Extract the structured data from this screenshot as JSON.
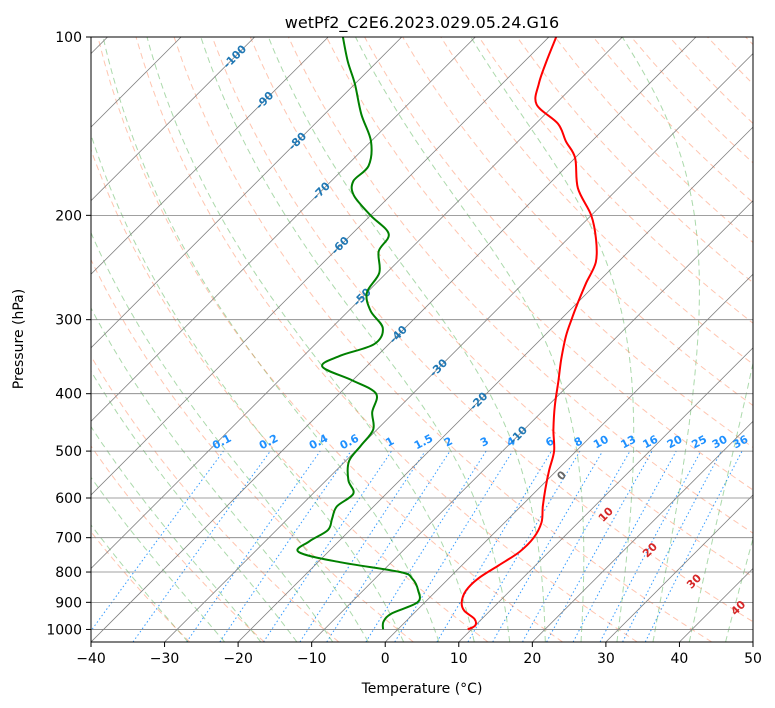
{
  "chart_data": {
    "type": "line",
    "title": "wetPf2_C2E6.2023.029.05.24.G16",
    "xlabel": "Temperature (°C)",
    "ylabel": "Pressure (hPa)",
    "xlim": [
      -40,
      50
    ],
    "ylim": [
      1050,
      100
    ],
    "y_scale": "log",
    "x_ticks": [
      "−40",
      "−30",
      "−20",
      "−10",
      "0",
      "10",
      "20",
      "30",
      "40",
      "50"
    ],
    "y_ticks": [
      "100",
      "200",
      "300",
      "400",
      "500",
      "600",
      "700",
      "800",
      "900",
      "1000"
    ],
    "grid": true,
    "skew_degrees": 45,
    "colors": {
      "temperature": "#ff0000",
      "dewpoint": "#008000",
      "isotherm": "#808080",
      "dry_adiabat": "#ff7f50",
      "moist_adiabat": "#2ca02c",
      "mixing_ratio": "#1e90ff",
      "dry_adiabat_label": "#1f77b4",
      "moist_adiabat_label": "#d62728"
    },
    "series": [
      {
        "name": "temperature",
        "points": [
          [
            1000,
            9.5
          ],
          [
            985,
            10.0
          ],
          [
            960,
            9.0
          ],
          [
            930,
            6.5
          ],
          [
            900,
            5.0
          ],
          [
            860,
            4.0
          ],
          [
            820,
            4.0
          ],
          [
            780,
            5.0
          ],
          [
            740,
            6.0
          ],
          [
            700,
            6.0
          ],
          [
            660,
            5.0
          ],
          [
            620,
            3.0
          ],
          [
            580,
            1.0
          ],
          [
            540,
            -1.0
          ],
          [
            500,
            -3.0
          ],
          [
            460,
            -6.0
          ],
          [
            420,
            -9.0
          ],
          [
            380,
            -12.0
          ],
          [
            350,
            -14.5
          ],
          [
            320,
            -17.0
          ],
          [
            300,
            -18.5
          ],
          [
            280,
            -20.0
          ],
          [
            260,
            -21.5
          ],
          [
            240,
            -23.0
          ],
          [
            220,
            -26.0
          ],
          [
            200,
            -30.0
          ],
          [
            180,
            -35.5
          ],
          [
            160,
            -40.0
          ],
          [
            150,
            -43.5
          ],
          [
            140,
            -47.0
          ],
          [
            130,
            -52.5
          ],
          [
            120,
            -55.0
          ],
          [
            110,
            -57.0
          ],
          [
            100,
            -59.0
          ]
        ]
      },
      {
        "name": "dewpoint",
        "points": [
          [
            1000,
            -2.0
          ],
          [
            970,
            -3.0
          ],
          [
            940,
            -3.0
          ],
          [
            900,
            -1.0
          ],
          [
            860,
            -2.5
          ],
          [
            820,
            -5.0
          ],
          [
            800,
            -7.5
          ],
          [
            770,
            -17.0
          ],
          [
            740,
            -24.0
          ],
          [
            710,
            -24.0
          ],
          [
            680,
            -23.0
          ],
          [
            650,
            -24.0
          ],
          [
            620,
            -25.0
          ],
          [
            590,
            -24.5
          ],
          [
            560,
            -27.0
          ],
          [
            520,
            -29.5
          ],
          [
            490,
            -30.0
          ],
          [
            460,
            -30.5
          ],
          [
            430,
            -33.0
          ],
          [
            400,
            -35.0
          ],
          [
            380,
            -40.0
          ],
          [
            360,
            -46.0
          ],
          [
            345,
            -45.0
          ],
          [
            330,
            -42.0
          ],
          [
            310,
            -43.0
          ],
          [
            290,
            -47.0
          ],
          [
            270,
            -50.0
          ],
          [
            250,
            -51.0
          ],
          [
            230,
            -54.0
          ],
          [
            215,
            -55.0
          ],
          [
            200,
            -60.0
          ],
          [
            185,
            -65.0
          ],
          [
            175,
            -67.0
          ],
          [
            165,
            -67.0
          ],
          [
            150,
            -70.0
          ],
          [
            135,
            -75.0
          ],
          [
            120,
            -80.0
          ],
          [
            110,
            -84.0
          ],
          [
            100,
            -88.0
          ]
        ]
      }
    ],
    "dry_adiabat_labels": [
      "-100",
      "-90",
      "-80",
      "-70",
      "-60",
      "-50",
      "-40",
      "-30",
      "-20",
      "-10"
    ],
    "moist_adiabat_labels": [
      "0",
      "10",
      "20",
      "30",
      "40"
    ],
    "mixing_ratio_labels": [
      "0.1",
      "0.2",
      "0.4",
      "0.6",
      "1",
      "1.5",
      "2",
      "3",
      "4",
      "6",
      "8",
      "10",
      "13",
      "16",
      "20",
      "25",
      "30",
      "36"
    ]
  }
}
